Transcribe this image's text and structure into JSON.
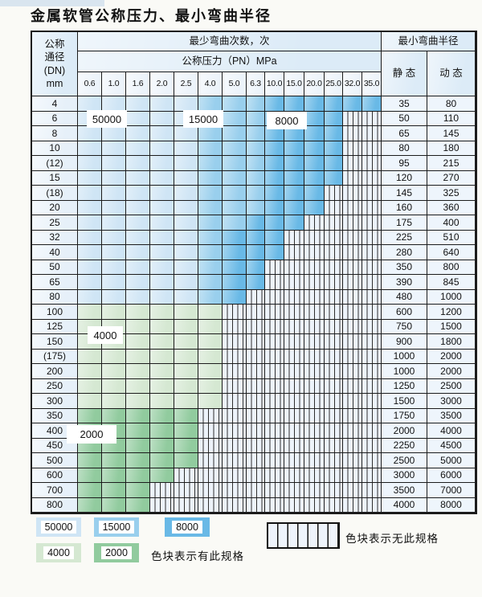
{
  "page": {
    "title": "金属软管公称压力、最小弯曲半径"
  },
  "table": {
    "header": {
      "dn_lines": [
        "公称",
        "通径",
        "(DN)",
        "mm"
      ],
      "cycles_label": "最少弯曲次数，次",
      "pressure_label": "公称压力（PN）MPa",
      "radius_label": "最小弯曲半径",
      "static_label": "静 态",
      "dynamic_label": "动 态",
      "pressures": [
        "0.6",
        "1.0",
        "1.6",
        "2.0",
        "2.5",
        "4.0",
        "5.0",
        "6.3",
        "10.0",
        "15.0",
        "20.0",
        "25.0",
        "32.0",
        "35.0"
      ]
    },
    "zones": {
      "b1": {
        "cycles": "50000",
        "color": "#cfe5f5"
      },
      "b2": {
        "cycles": "15000",
        "color": "#99cfed"
      },
      "b3": {
        "cycles": "8000",
        "color": "#69b9e6"
      },
      "g1": {
        "cycles": "4000",
        "color": "#d5e8d2"
      },
      "g2": {
        "cycles": "2000",
        "color": "#91cb9e"
      },
      "x": {
        "cycles": "",
        "color": "#edf3fa"
      }
    },
    "rows": [
      {
        "dn": "4",
        "cells": "11111222333333",
        "static": "35",
        "dynamic": "80"
      },
      {
        "dn": "6",
        "cells": "11111222333300",
        "static": "50",
        "dynamic": "110"
      },
      {
        "dn": "8",
        "cells": "11111222333300",
        "static": "65",
        "dynamic": "145"
      },
      {
        "dn": "10",
        "cells": "11111222333300",
        "static": "80",
        "dynamic": "180"
      },
      {
        "dn": "(12)",
        "cells": "11111222333300",
        "static": "95",
        "dynamic": "215"
      },
      {
        "dn": "15",
        "cells": "11111222333300",
        "static": "120",
        "dynamic": "270"
      },
      {
        "dn": "(18)",
        "cells": "11111222333000",
        "static": "145",
        "dynamic": "325"
      },
      {
        "dn": "20",
        "cells": "11111222333000",
        "static": "160",
        "dynamic": "360"
      },
      {
        "dn": "25",
        "cells": "11111223330000",
        "static": "175",
        "dynamic": "400"
      },
      {
        "dn": "32",
        "cells": "11111233300000",
        "static": "225",
        "dynamic": "510"
      },
      {
        "dn": "40",
        "cells": "11111233300000",
        "static": "280",
        "dynamic": "640"
      },
      {
        "dn": "50",
        "cells": "11111233000000",
        "static": "350",
        "dynamic": "800"
      },
      {
        "dn": "65",
        "cells": "11111233000000",
        "static": "390",
        "dynamic": "845"
      },
      {
        "dn": "80",
        "cells": "11111230000000",
        "static": "480",
        "dynamic": "1000"
      },
      {
        "dn": "100",
        "cells": "44444400000000",
        "static": "600",
        "dynamic": "1200"
      },
      {
        "dn": "125",
        "cells": "44444400000000",
        "static": "750",
        "dynamic": "1500"
      },
      {
        "dn": "150",
        "cells": "44444400000000",
        "static": "900",
        "dynamic": "1800"
      },
      {
        "dn": "(175)",
        "cells": "44444400000000",
        "static": "1000",
        "dynamic": "2000"
      },
      {
        "dn": "200",
        "cells": "44444400000000",
        "static": "1000",
        "dynamic": "2000"
      },
      {
        "dn": "250",
        "cells": "44444400000000",
        "static": "1250",
        "dynamic": "2500"
      },
      {
        "dn": "300",
        "cells": "44444400000000",
        "static": "1500",
        "dynamic": "3000"
      },
      {
        "dn": "350",
        "cells": "55555000000000",
        "static": "1750",
        "dynamic": "3500"
      },
      {
        "dn": "400",
        "cells": "55555000000000",
        "static": "2000",
        "dynamic": "4000"
      },
      {
        "dn": "450",
        "cells": "55555000000000",
        "static": "2250",
        "dynamic": "4500"
      },
      {
        "dn": "500",
        "cells": "55555000000000",
        "static": "2500",
        "dynamic": "5000"
      },
      {
        "dn": "600",
        "cells": "55550000000000",
        "static": "3000",
        "dynamic": "6000"
      },
      {
        "dn": "700",
        "cells": "55500000000000",
        "static": "3500",
        "dynamic": "7000"
      },
      {
        "dn": "800",
        "cells": "55500000000000",
        "static": "4000",
        "dynamic": "8000"
      }
    ]
  },
  "legend": {
    "has_spec_text": "色块表示有此规格",
    "no_spec_text": "色块表示无此规格"
  }
}
